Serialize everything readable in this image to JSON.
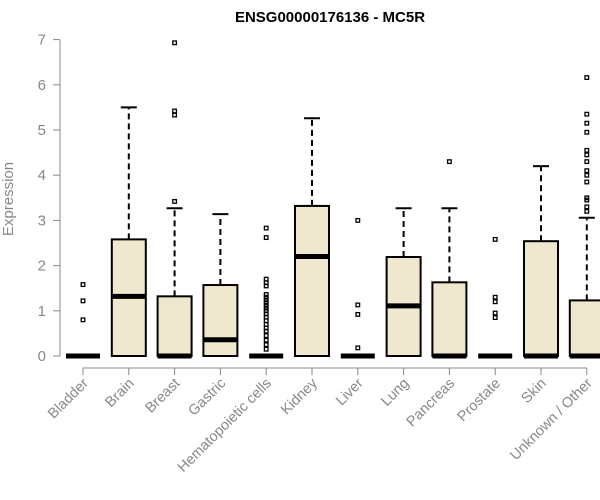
{
  "chart_data": {
    "type": "boxplot",
    "title": "ENSG00000176136 - MC5R",
    "ylabel": "Expression",
    "xlabel": "",
    "ylim": [
      0,
      7
    ],
    "yticks": [
      0,
      1,
      2,
      3,
      4,
      5,
      6,
      7
    ],
    "box_fill": "#efe8cf",
    "axis_color": "#888888",
    "categories": [
      "Bladder",
      "Brain",
      "Breast",
      "Gastric",
      "Hematopoietic cells",
      "Kidney",
      "Liver",
      "Lung",
      "Pancreas",
      "Prostate",
      "Skin",
      "Unknown / Other"
    ],
    "boxes": [
      {
        "q1": 0,
        "median": 0,
        "q3": 0,
        "whisker_low": 0,
        "whisker_high": 0,
        "outliers": [
          0.8,
          1.22,
          1.58
        ]
      },
      {
        "q1": 0,
        "median": 1.32,
        "q3": 2.58,
        "whisker_low": 0,
        "whisker_high": 5.5,
        "outliers": []
      },
      {
        "q1": 0,
        "median": 0,
        "q3": 1.32,
        "whisker_low": 0,
        "whisker_high": 3.27,
        "outliers": [
          3.42,
          5.33,
          5.42,
          6.93
        ]
      },
      {
        "q1": 0,
        "median": 0.36,
        "q3": 1.57,
        "whisker_low": 0,
        "whisker_high": 3.14,
        "outliers": []
      },
      {
        "q1": 0,
        "median": 0,
        "q3": 0,
        "whisker_low": 0,
        "whisker_high": 0,
        "outliers": [
          0.15,
          0.25,
          0.35,
          0.45,
          0.55,
          0.62,
          0.7,
          0.78,
          0.86,
          0.93,
          1.0,
          1.06,
          1.12,
          1.18,
          1.24,
          1.3,
          1.36,
          1.55,
          1.62,
          1.7,
          2.62,
          2.83
        ]
      },
      {
        "q1": 0,
        "median": 2.2,
        "q3": 3.32,
        "whisker_low": 0,
        "whisker_high": 5.26,
        "outliers": []
      },
      {
        "q1": 0,
        "median": 0,
        "q3": 0,
        "whisker_low": 0,
        "whisker_high": 0,
        "outliers": [
          0.18,
          0.92,
          1.13,
          3.0
        ]
      },
      {
        "q1": 0,
        "median": 1.11,
        "q3": 2.19,
        "whisker_low": 0,
        "whisker_high": 3.27,
        "outliers": []
      },
      {
        "q1": 0,
        "median": 0,
        "q3": 1.63,
        "whisker_low": 0,
        "whisker_high": 3.27,
        "outliers": [
          4.3
        ]
      },
      {
        "q1": 0,
        "median": 0,
        "q3": 0,
        "whisker_low": 0,
        "whisker_high": 0,
        "outliers": [
          0.85,
          0.95,
          1.2,
          1.3,
          2.58
        ]
      },
      {
        "q1": 0,
        "median": 0,
        "q3": 2.54,
        "whisker_low": 0,
        "whisker_high": 4.2,
        "outliers": []
      },
      {
        "q1": 0,
        "median": 0,
        "q3": 1.23,
        "whisker_low": 0,
        "whisker_high": 3.06,
        "outliers": [
          3.2,
          3.3,
          3.45,
          3.5,
          3.85,
          4.0,
          4.1,
          4.3,
          4.45,
          4.55,
          4.95,
          5.15,
          5.35,
          6.16
        ]
      }
    ]
  }
}
